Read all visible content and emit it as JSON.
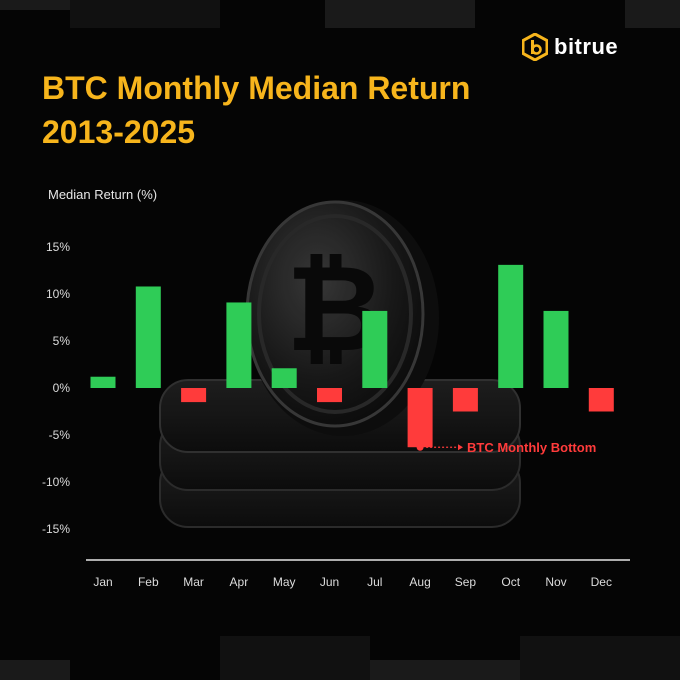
{
  "brand": {
    "name": "bitrue",
    "logo_icon": "bitrue-hexagon-logo-icon",
    "accent": "#f7b51c"
  },
  "title_line1": "BTC Monthly Median Return",
  "title_line2": "2013-2025",
  "chart_data": {
    "type": "bar",
    "title": "BTC Monthly Median Return 2013-2025",
    "xlabel": "",
    "ylabel": "Median Return (%)",
    "ylim": [
      -18,
      18
    ],
    "yticks": [
      15,
      10,
      5,
      0,
      -5,
      -10,
      -15
    ],
    "ytick_labels": [
      "15%",
      "10%",
      "5%",
      "0%",
      "-5%",
      "-10%",
      "-15%"
    ],
    "categories": [
      "Jan",
      "Feb",
      "Mar",
      "Apr",
      "May",
      "Jun",
      "Jul",
      "Aug",
      "Sep",
      "Oct",
      "Nov",
      "Dec"
    ],
    "values": [
      1.2,
      10.8,
      -1.5,
      9.1,
      2.1,
      -1.5,
      8.2,
      -6.3,
      -2.5,
      13.1,
      8.2,
      -2.5
    ],
    "colors": {
      "positive": "#2fcc57",
      "negative": "#ff3b3b"
    },
    "grid": false,
    "annotation": {
      "category": "Aug",
      "text": "BTC Monthly Bottom",
      "color": "#ff3b3b"
    },
    "background_icon": "bitcoin-coin-icon"
  }
}
